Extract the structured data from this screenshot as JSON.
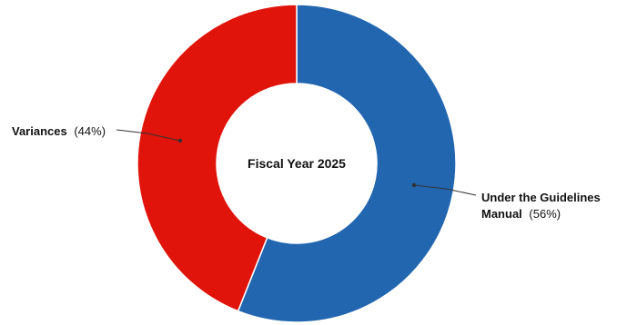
{
  "chart_data": {
    "type": "pie",
    "variant": "donut",
    "center_label": "Fiscal Year 2025",
    "slices": [
      {
        "name": "Under the Guidelines Manual",
        "name_line1": "Under the Guidelines",
        "name_line2": "Manual",
        "value": 56,
        "pct_label": "(56%)",
        "color": "#2266b0"
      },
      {
        "name": "Variances",
        "value": 44,
        "pct_label": "(44%)",
        "color": "#e0140a"
      }
    ]
  }
}
